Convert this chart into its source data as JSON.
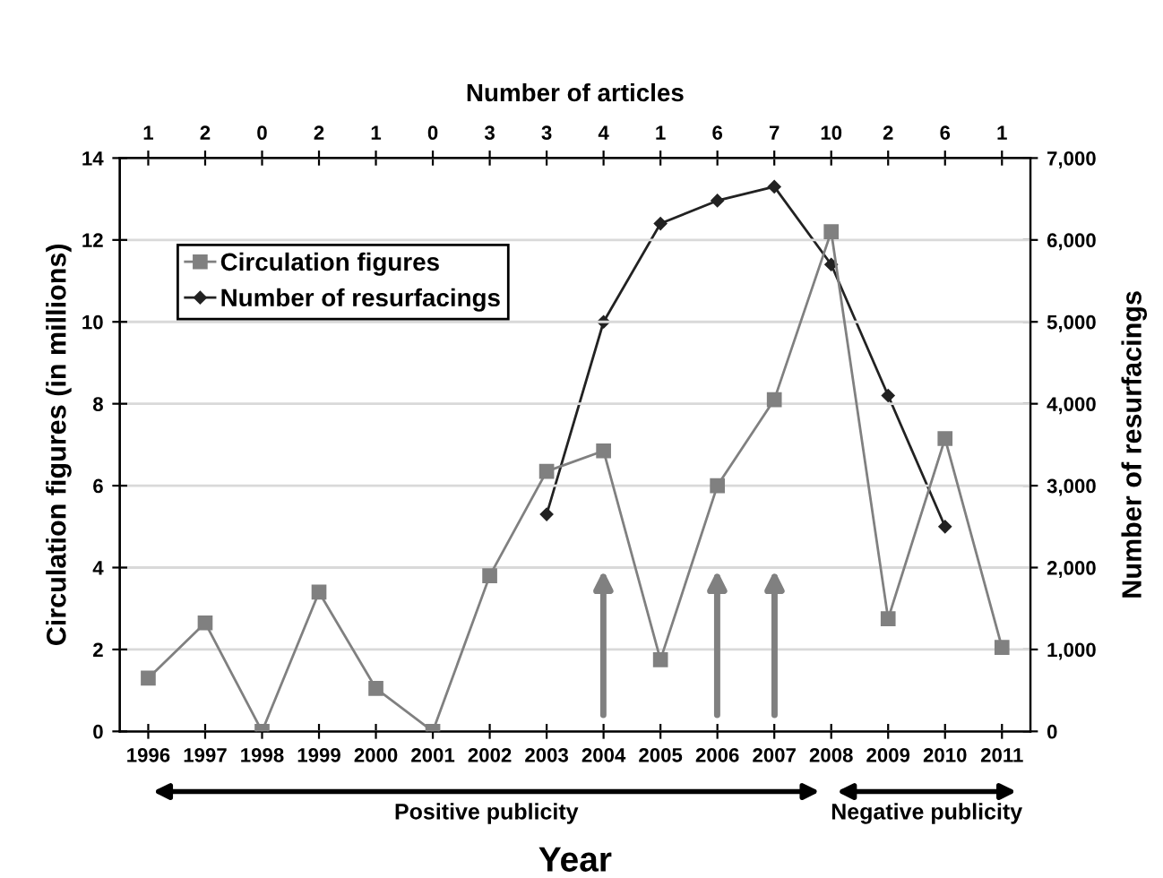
{
  "chart_data": {
    "type": "line",
    "xlabel": "Year",
    "ylabel": "Circulation figures (in millions)",
    "y2label": "Number of resurfacings",
    "x2label": "Number of articles",
    "x": [
      1996,
      1997,
      1998,
      1999,
      2000,
      2001,
      2002,
      2003,
      2004,
      2005,
      2006,
      2007,
      2008,
      2009,
      2010,
      2011
    ],
    "series": [
      {
        "name": "Circulation figures",
        "color": "#808080",
        "marker": "square",
        "values": [
          1.3,
          2.65,
          0,
          3.4,
          1.05,
          0,
          3.8,
          6.35,
          6.85,
          1.75,
          6.0,
          8.1,
          12.2,
          2.75,
          7.15,
          2.05
        ]
      },
      {
        "name": "Number of resurfacings",
        "color": "#222222",
        "marker": "diamond",
        "axis": "y2",
        "values": [
          null,
          null,
          null,
          null,
          null,
          null,
          null,
          2650,
          5000,
          6200,
          6480,
          6650,
          5700,
          4100,
          2500,
          null
        ]
      }
    ],
    "xlim": [
      1995.5,
      2011.5
    ],
    "xticks": [
      1996,
      1997,
      1998,
      1999,
      2000,
      2001,
      2002,
      2003,
      2004,
      2005,
      2006,
      2007,
      2008,
      2009,
      2010,
      2011
    ],
    "annotations": [
      {
        "text": "1",
        "x": 1996
      },
      {
        "text": "2",
        "x": 1997
      },
      {
        "text": "0",
        "x": 1998
      },
      {
        "text": "2",
        "x": 1999
      },
      {
        "text": "1",
        "x": 2000
      },
      {
        "text": "0",
        "x": 2001
      },
      {
        "text": "3",
        "x": 2002
      },
      {
        "text": "3",
        "x": 2003
      },
      {
        "text": "4",
        "x": 2004
      },
      {
        "text": "1",
        "x": 2005
      },
      {
        "text": "6",
        "x": 2006
      },
      {
        "text": "7",
        "x": 2007
      },
      {
        "text": "10",
        "x": 2008
      },
      {
        "text": "2",
        "x": 2009
      },
      {
        "text": "6",
        "x": 2010
      },
      {
        "text": "1",
        "x": 2011
      },
      "Positive publicity",
      "Negative publicity"
    ],
    "ylim": [
      0,
      14
    ],
    "yticks": [
      0,
      2,
      4,
      6,
      8,
      10,
      12,
      14
    ],
    "y2lim": [
      0,
      7000
    ],
    "y2ticks": [
      {
        "value": 0,
        "label": "0"
      },
      {
        "value": 1000,
        "label": "1,000"
      },
      {
        "value": 2000,
        "label": "2,000"
      },
      {
        "value": 3000,
        "label": "3,000"
      },
      {
        "value": 4000,
        "label": "4,000"
      },
      {
        "value": 5000,
        "label": "5,000"
      },
      {
        "value": 6000,
        "label": "6,000"
      },
      {
        "value": 7000,
        "label": "7,000"
      }
    ],
    "grid": "y",
    "legend": "top left"
  }
}
